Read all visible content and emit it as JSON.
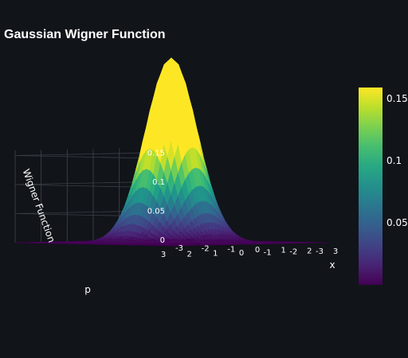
{
  "chart_data": {
    "type": "surface",
    "title": "Gaussian Wigner Function",
    "xlabel": "x",
    "ylabel": "p",
    "zlabel": "Wigner Function",
    "function": "W(x,p) = exp(-(x^2+p^2)) / pi",
    "x_range": [
      -3,
      3
    ],
    "p_range": [
      -3,
      3
    ],
    "z_range": [
      0,
      0.159
    ],
    "x_ticks": [
      "-3",
      "-2",
      "-1",
      "0",
      "1",
      "2",
      "3"
    ],
    "p_ticks": [
      "-3",
      "-2",
      "-1",
      "0",
      "1",
      "2",
      "3"
    ],
    "z_ticks": [
      "0",
      "0.05",
      "0.1",
      "0.15"
    ],
    "colorscale": "Viridis",
    "colorbar_ticks": [
      "0.05",
      "0.1",
      "0.15"
    ],
    "colorbar_range": [
      0,
      0.159
    ],
    "colors": {
      "background": "#111419",
      "grid": "#3a3f47",
      "text": "#ffffff"
    }
  }
}
